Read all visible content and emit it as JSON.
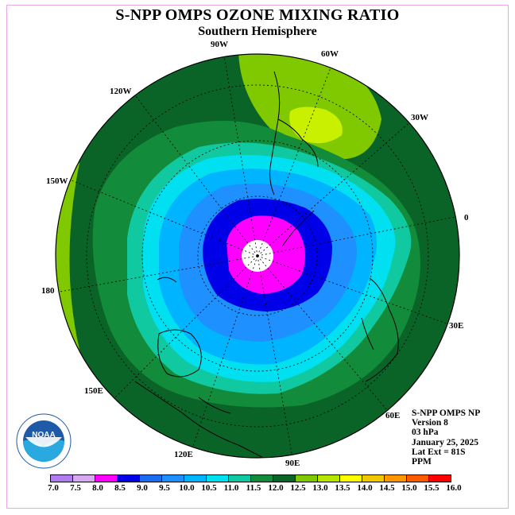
{
  "title": "S-NPP OMPS OZONE MIXING RATIO",
  "subtitle": "Southern Hemisphere",
  "longitude_labels": [
    "90W",
    "60W",
    "120W",
    "30W",
    "150W",
    "0",
    "180",
    "30E",
    "150E",
    "60E",
    "120E",
    "90E"
  ],
  "info": {
    "line1": "S-NPP OMPS NP",
    "line2": "Version 8",
    "line3": "03 hPa",
    "line4": "January 25, 2025",
    "line5": "Lat Ext = 81S",
    "line6": "PPM"
  },
  "logo": {
    "text": "NOAA",
    "ring_text": "NATIONAL OCEANIC AND ATMOSPHERIC ADMINISTRATION",
    "ring_text_bottom": "U.S. DEPARTMENT OF COMMERCE"
  },
  "colorbar": {
    "labels": [
      "7.0",
      "7.5",
      "8.0",
      "8.5",
      "9.0",
      "9.5",
      "10.0",
      "10.5",
      "11.0",
      "11.5",
      "12.0",
      "12.5",
      "13.0",
      "13.5",
      "14.0",
      "14.5",
      "15.0",
      "15.5",
      "16.0"
    ],
    "colors": [
      "#b07cf0",
      "#d8a8f0",
      "#ff00ff",
      "#0000e8",
      "#1a6cf0",
      "#1e90ff",
      "#00b4ff",
      "#00e0f0",
      "#11c9a0",
      "#128c3a",
      "#0a6428",
      "#80c800",
      "#b4e600",
      "#ffff00",
      "#f0c800",
      "#ff9600",
      "#ff5a00",
      "#ff0000",
      "#8b5a3c"
    ]
  },
  "map_colors": {
    "outer_green": "#0a6428",
    "mid_green": "#128c3a",
    "teal": "#11c9a0",
    "cyan": "#00e0f0",
    "lightblue": "#00b4ff",
    "blue": "#1e90ff",
    "darkblue": "#0000e8",
    "magenta": "#ff00ff",
    "lime": "#80c800",
    "yellowgreen": "#b4e600",
    "yellow": "#e0f000"
  }
}
